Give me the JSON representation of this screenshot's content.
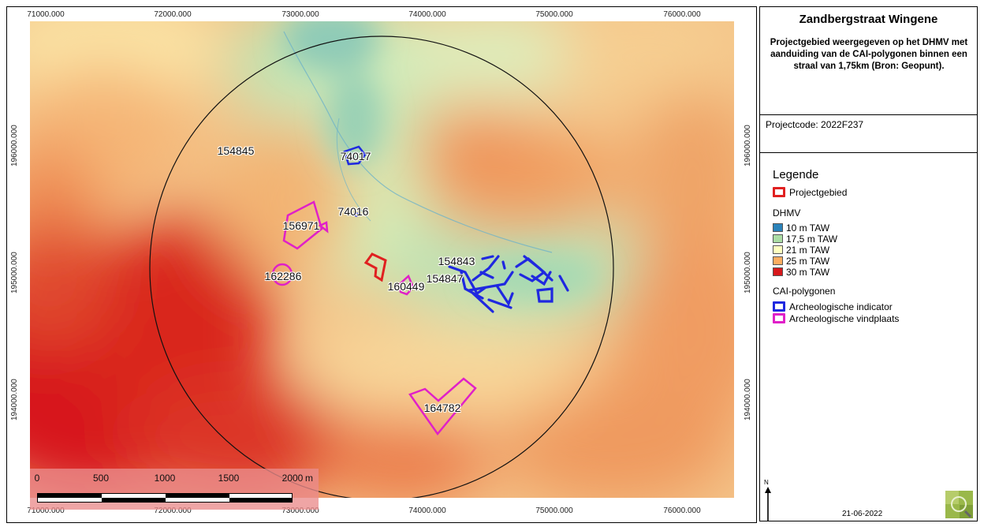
{
  "map": {
    "x_ticks": [
      "71000.000",
      "72000.000",
      "73000.000",
      "74000.000",
      "75000.000",
      "76000.000"
    ],
    "y_ticks": [
      "196000.000",
      "195000.000",
      "194000.000"
    ],
    "polygon_labels": [
      "154845",
      "74017",
      "74016",
      "156971",
      "162286",
      "160449",
      "154843",
      "154847",
      "164782"
    ],
    "colors": {
      "projectgebied": "#e02020",
      "archeologische_indicator": "#1f28e0",
      "archeologische_vindplaats": "#e020c8"
    }
  },
  "scalebar": {
    "ticks": [
      "0",
      "500",
      "1000",
      "1500",
      "2000"
    ],
    "unit": "m"
  },
  "panel": {
    "title": "Zandbergstraat Wingene",
    "subtitle": "Projectgebied weergegeven op het DHMV met aanduiding van de CAI-polygonen binnen een straal van 1,75km (Bron: Geopunt).",
    "project_code": "Projectcode: 2022F237",
    "legend": {
      "title": "Legende",
      "projectgebied": "Projectgebied",
      "dhmv_title": "DHMV",
      "dhmv_items": [
        {
          "label": "10 m TAW",
          "color": "#2b83ba"
        },
        {
          "label": "17,5 m TAW",
          "color": "#abdda4"
        },
        {
          "label": "21 m TAW",
          "color": "#ffffbf"
        },
        {
          "label": "25 m TAW",
          "color": "#fdae61"
        },
        {
          "label": "30 m TAW",
          "color": "#d7191c"
        }
      ],
      "cai_title": "CAI-polygonen",
      "cai_items": [
        "Archeologische indicator",
        "Archeologische vindplaats"
      ]
    },
    "north_label": "N",
    "date": "21-06-2022"
  }
}
